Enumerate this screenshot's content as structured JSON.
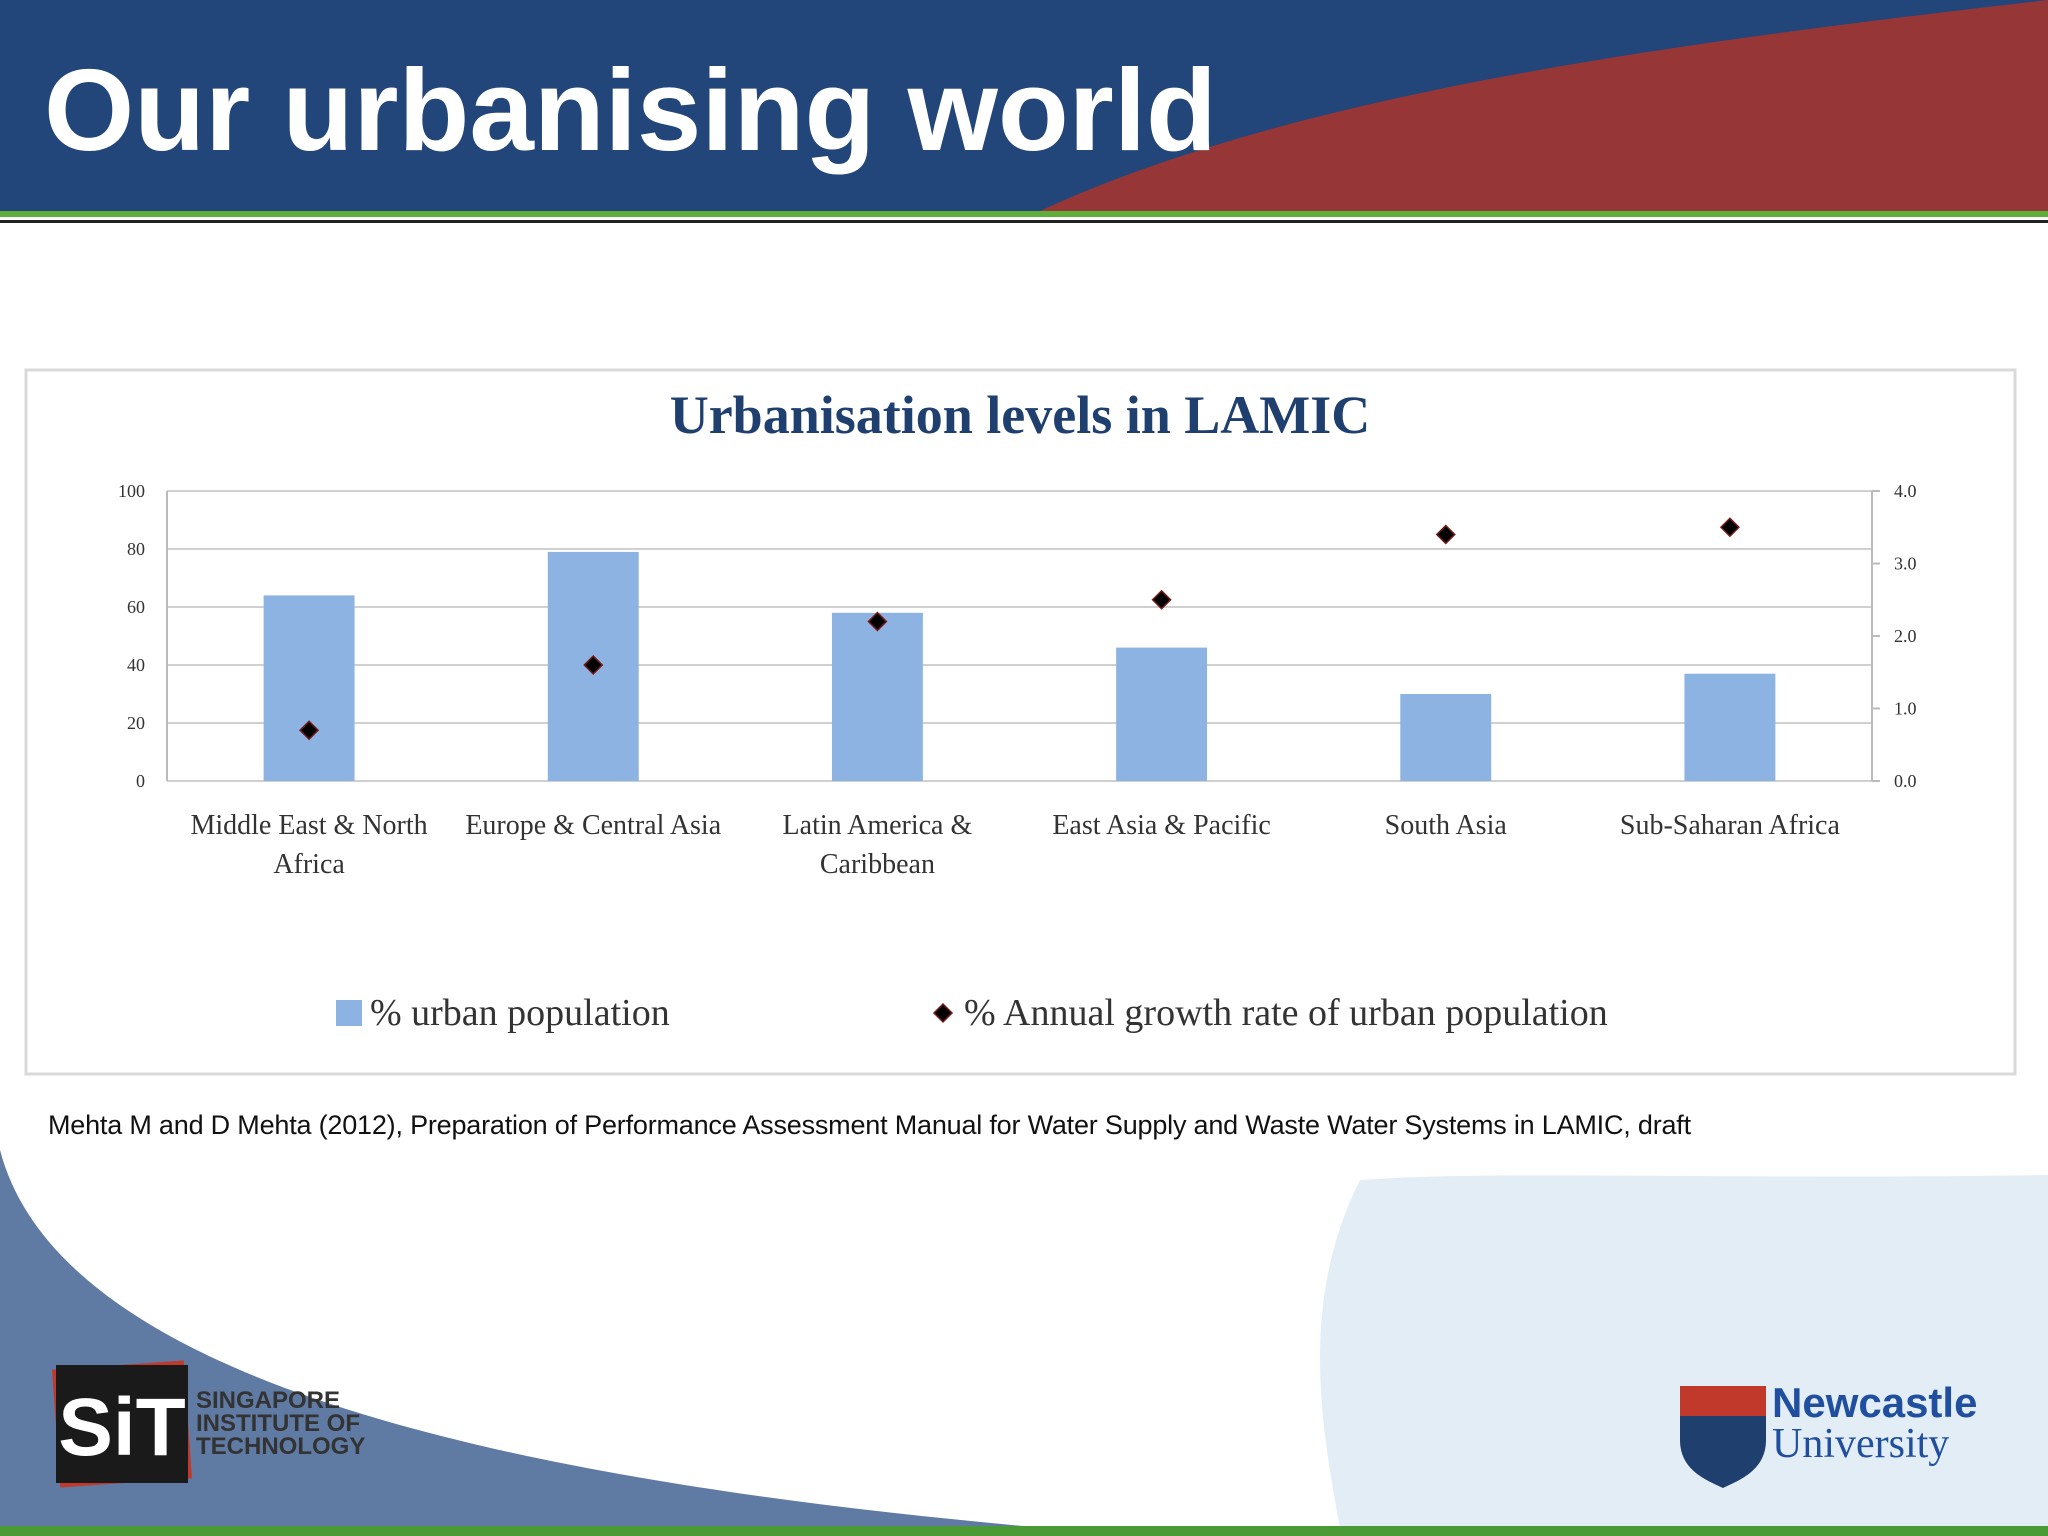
{
  "slide_title": "Our urbanising world",
  "citation": "Mehta M and D Mehta (2012), Preparation of Performance Assessment Manual for Water Supply and Waste Water Systems in LAMIC, draft",
  "logos": {
    "sit": {
      "mark": "SiT",
      "lines": [
        "SINGAPORE",
        "INSTITUTE OF",
        "TECHNOLOGY"
      ]
    },
    "newcastle": {
      "lines": [
        "Newcastle",
        "University"
      ]
    }
  },
  "chart_data": {
    "type": "bar",
    "title": "Urbanisation levels in LAMIC",
    "categories": [
      "Middle East & North Africa",
      "Europe & Central Asia",
      "Latin America & Caribbean",
      "East Asia & Pacific",
      "South Asia",
      "Sub-Saharan Africa"
    ],
    "series": [
      {
        "name": "% urban population",
        "type": "bar",
        "color": "#8db3e2",
        "values": [
          64,
          79,
          58,
          46,
          30,
          37
        ]
      },
      {
        "name": "% Annual growth rate of urban population",
        "type": "scatter",
        "axis": "y2",
        "color": "#000000",
        "values": [
          0.7,
          1.6,
          2.2,
          2.5,
          3.4,
          3.5
        ]
      }
    ],
    "ylim": [
      0,
      100
    ],
    "yticks": [
      0,
      20,
      40,
      60,
      80,
      100
    ],
    "y2lim": [
      0,
      4
    ],
    "y2ticks": [
      {
        "value": 0,
        "label": "0.0"
      },
      {
        "value": 1,
        "label": "1.0"
      },
      {
        "value": 2,
        "label": "2.0"
      },
      {
        "value": 3,
        "label": "3.0"
      },
      {
        "value": 4,
        "label": "4.0"
      }
    ],
    "grid": true,
    "legend": "bottom"
  }
}
